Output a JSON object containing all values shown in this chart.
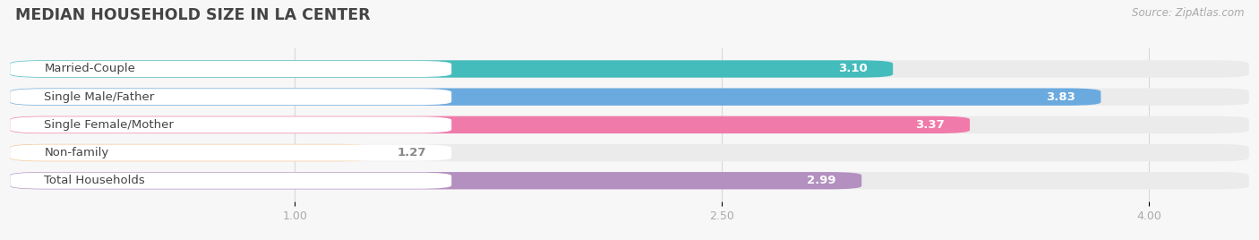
{
  "title": "MEDIAN HOUSEHOLD SIZE IN LA CENTER",
  "source": "Source: ZipAtlas.com",
  "categories": [
    "Married-Couple",
    "Single Male/Father",
    "Single Female/Mother",
    "Non-family",
    "Total Households"
  ],
  "values": [
    3.1,
    3.83,
    3.37,
    1.27,
    2.99
  ],
  "bar_colors": [
    "#45bcbc",
    "#6aaadf",
    "#f07baa",
    "#f5c897",
    "#b390c0"
  ],
  "value_label_colors": [
    "#ffffff",
    "#ffffff",
    "#ffffff",
    "#888888",
    "#ffffff"
  ],
  "xmin": 0.0,
  "xmax": 4.35,
  "xticks": [
    1.0,
    2.5,
    4.0
  ],
  "bar_height": 0.62,
  "bar_gap": 0.38,
  "figsize": [
    14.06,
    2.68
  ],
  "dpi": 100,
  "title_fontsize": 12.5,
  "label_fontsize": 9.5,
  "value_fontsize": 9.5,
  "tick_fontsize": 9,
  "source_fontsize": 8.5,
  "bg_color": "#f7f7f7",
  "bar_bg_color": "#ebebeb",
  "label_bg_color": "#ffffff",
  "grid_color": "#d8d8d8"
}
